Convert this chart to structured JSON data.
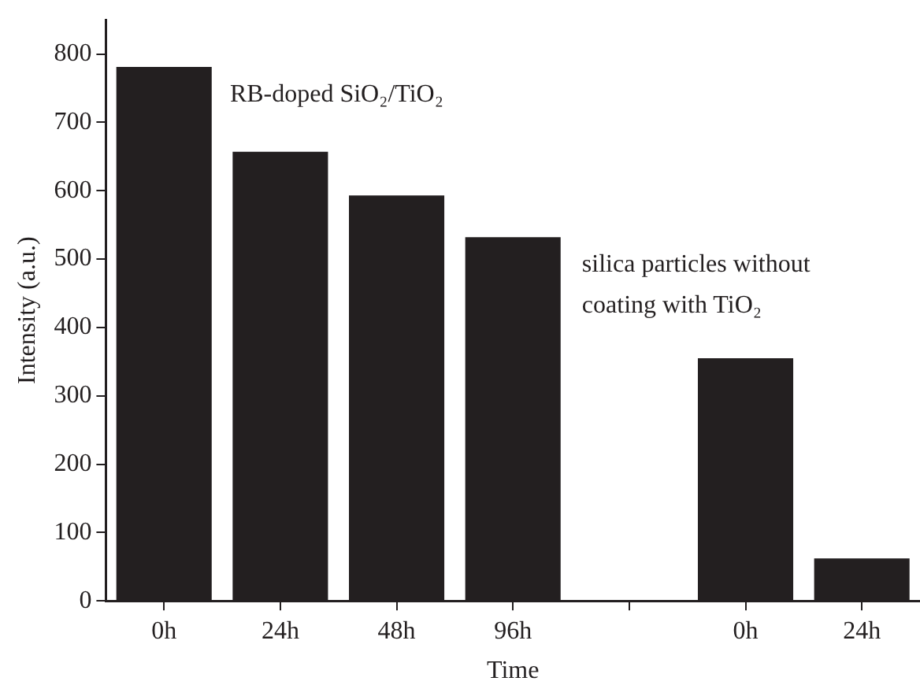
{
  "chart_data": {
    "type": "bar",
    "xlabel": "Time",
    "ylabel": "Intensity (a.u.)",
    "categories": [
      "0h",
      "24h",
      "48h",
      "96h",
      null,
      "0h",
      "24h"
    ],
    "values": [
      781,
      657,
      593,
      532,
      null,
      355,
      62
    ],
    "color": "#231f20",
    "ylim": [
      0,
      850
    ],
    "yticks": [
      0,
      100,
      200,
      300,
      400,
      500,
      600,
      700,
      800
    ],
    "grid": false,
    "legend": false,
    "annotations": [
      "RB-doped SiO₂/TiO₂",
      "silica particles without coating with TiO₂"
    ]
  }
}
